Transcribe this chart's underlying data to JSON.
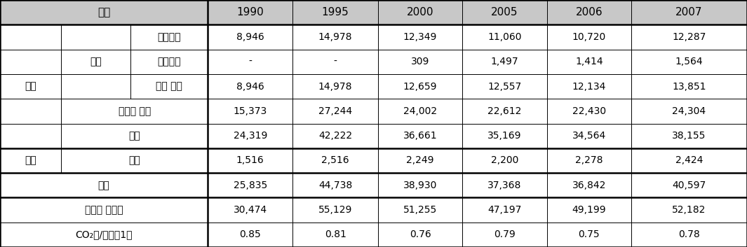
{
  "header_bg": "#c8c8c8",
  "white_bg": "#ffffff",
  "header_font_size": 11,
  "cell_font_size": 10,
  "columns": [
    "1990",
    "1995",
    "2000",
    "2005",
    "2006",
    "2007"
  ],
  "c0": 0.0,
  "c1": 0.082,
  "c2": 0.175,
  "c3": 0.278,
  "c4": 0.392,
  "c5": 0.506,
  "c6": 0.619,
  "c7": 0.732,
  "c8": 0.845,
  "c9": 1.0,
  "n_rows": 10,
  "lw_thin": 0.7,
  "lw_thick": 1.8,
  "row_data": [
    {
      "type": "header"
    },
    {
      "type": "data",
      "col3": "화석연료",
      "values": [
        "8,946",
        "14,978",
        "12,349",
        "11,060",
        "10,720",
        "12,287"
      ]
    },
    {
      "type": "data",
      "col3": "대체연료",
      "values": [
        "-",
        "-",
        "309",
        "1,497",
        "1,414",
        "1,564"
      ]
    },
    {
      "type": "data",
      "col3": "연료 소계",
      "values": [
        "8,946",
        "14,978",
        "12,659",
        "12,557",
        "12,134",
        "13,851"
      ]
    },
    {
      "type": "data",
      "col23": "탈탄산 공정",
      "values": [
        "15,373",
        "27,244",
        "24,002",
        "22,612",
        "22,430",
        "24,304"
      ]
    },
    {
      "type": "data",
      "col23": "소계",
      "values": [
        "24,319",
        "42,222",
        "36,661",
        "35,169",
        "34,564",
        "38,155"
      ]
    },
    {
      "type": "data",
      "col1": "간접",
      "col23": "전력",
      "values": [
        "1,516",
        "2,516",
        "2,249",
        "2,200",
        "2,278",
        "2,424"
      ]
    },
    {
      "type": "data",
      "col123": "총계",
      "values": [
        "25,835",
        "44,738",
        "38,930",
        "37,368",
        "36,842",
        "40,597"
      ]
    },
    {
      "type": "data",
      "col123": "시멘트 생산량",
      "values": [
        "30,474",
        "55,129",
        "51,255",
        "47,197",
        "49,199",
        "52,182"
      ]
    },
    {
      "type": "data",
      "col123": "CO₂톤/시멘트1톤",
      "values": [
        "0.85",
        "0.81",
        "0.76",
        "0.79",
        "0.75",
        "0.78"
      ]
    }
  ]
}
